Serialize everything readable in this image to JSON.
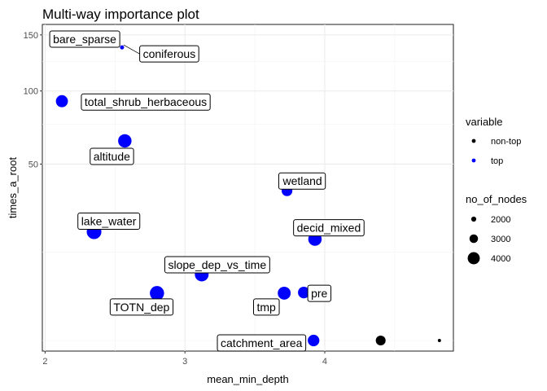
{
  "chart_data": {
    "type": "scatter",
    "title": "Multi-way importance plot",
    "xlabel": "mean_min_depth",
    "ylabel": "times_a_root",
    "x_scale": "linear",
    "y_scale": "sqrt",
    "xlim": [
      1.98,
      4.92
    ],
    "ylim": [
      0,
      150
    ],
    "x_ticks": [
      2,
      3,
      4
    ],
    "x_tick_labels": [
      "2",
      "3",
      "4"
    ],
    "y_ticks": [
      50,
      100,
      150
    ],
    "y_tick_labels": [
      "50",
      "100",
      "150"
    ],
    "grid": true,
    "colors": {
      "non-top": "#000000",
      "top": "#0000ff"
    },
    "size_legend": {
      "title": "no_of_nodes",
      "values": [
        2000,
        3000,
        4000
      ],
      "labels": [
        "2000",
        "3000",
        "4000"
      ]
    },
    "color_legend": {
      "title": "variable",
      "entries": [
        "non-top",
        "top"
      ]
    },
    "legend_position": "right",
    "points": [
      {
        "label": "bare_sparse",
        "x": 2.4,
        "y": 140,
        "group": "top",
        "nodes": 1500
      },
      {
        "label": "coniferous",
        "x": 2.55,
        "y": 138,
        "group": "top",
        "nodes": 1500
      },
      {
        "label": "total_shrub_herbaceous",
        "x": 2.12,
        "y": 92,
        "group": "top",
        "nodes": 3300
      },
      {
        "label": "altitude",
        "x": 2.57,
        "y": 64,
        "group": "top",
        "nodes": 3600
      },
      {
        "label": "wetland",
        "x": 3.73,
        "y": 36,
        "group": "top",
        "nodes": 3000
      },
      {
        "label": "lake_water",
        "x": 2.35,
        "y": 19,
        "group": "top",
        "nodes": 3900
      },
      {
        "label": "decid_mixed",
        "x": 3.93,
        "y": 16.5,
        "group": "top",
        "nodes": 3600
      },
      {
        "label": "slope_dep_vs_time",
        "x": 3.12,
        "y": 7,
        "group": "top",
        "nodes": 3700
      },
      {
        "label": "TOTN_dep",
        "x": 2.8,
        "y": 3.6,
        "group": "top",
        "nodes": 3800
      },
      {
        "label": "tmp",
        "x": 3.71,
        "y": 3.6,
        "group": "top",
        "nodes": 3500
      },
      {
        "label": "pre",
        "x": 3.85,
        "y": 3.7,
        "group": "top",
        "nodes": 3200
      },
      {
        "label": "catchment_area",
        "x": 3.92,
        "y": 0,
        "group": "top",
        "nodes": 3200
      },
      {
        "label": "",
        "x": 4.4,
        "y": 0,
        "group": "non-top",
        "nodes": 2800
      },
      {
        "label": "",
        "x": 4.82,
        "y": 0,
        "group": "non-top",
        "nodes": 1300
      }
    ]
  }
}
